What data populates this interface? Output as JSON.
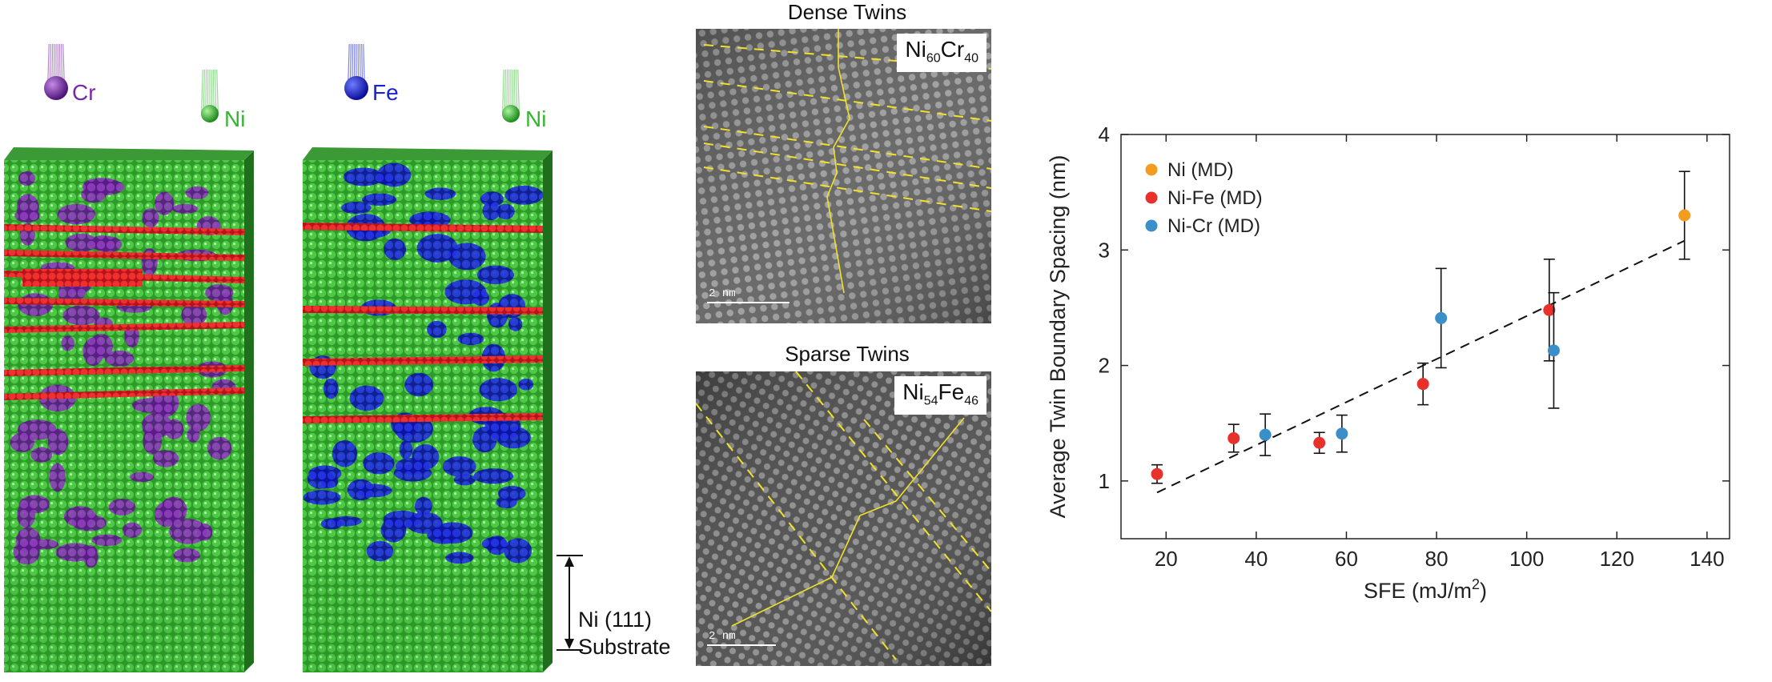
{
  "md_panel": {
    "left_column": {
      "deposit_a": "Cr",
      "deposit_b": "Ni"
    },
    "right_column": {
      "deposit_a": "Fe",
      "deposit_b": "Ni"
    },
    "substrate_line1": "Ni (111)",
    "substrate_line2": "Substrate",
    "colors": {
      "ni": "#3fbf3a",
      "cr": "#7a2aa8",
      "fe": "#1a22d8",
      "twin": "#e8252b"
    }
  },
  "tem_top": {
    "title": "Dense Twins",
    "element1": "Ni",
    "sub1": "60",
    "element2": "Cr",
    "sub2": "40",
    "scale": "2 nm"
  },
  "tem_bottom": {
    "title": "Sparse Twins",
    "element1": "Ni",
    "sub1": "54",
    "element2": "Fe",
    "sub2": "46",
    "scale": "2 nm"
  },
  "chart_data": {
    "type": "scatter",
    "xlabel_main": "SFE (mJ/m",
    "xlabel_sup": "2",
    "xlabel_end": ")",
    "ylabel": "Average Twin Boundary Spacing (nm)",
    "xlim": [
      10,
      145
    ],
    "ylim": [
      0.5,
      4
    ],
    "x_ticks": [
      20,
      40,
      60,
      80,
      100,
      120,
      140
    ],
    "y_ticks": [
      1,
      2,
      3,
      4
    ],
    "legend_position": "top-left",
    "series": [
      {
        "name": "Ni (MD)",
        "color": "#f39c1f",
        "points": [
          {
            "x": 135,
            "y": 3.3,
            "err": 0.38
          }
        ]
      },
      {
        "name": "Ni-Fe (MD)",
        "color": "#e8312a",
        "points": [
          {
            "x": 18,
            "y": 1.06,
            "err": 0.08
          },
          {
            "x": 35,
            "y": 1.37,
            "err": 0.12
          },
          {
            "x": 54,
            "y": 1.33,
            "err": 0.09
          },
          {
            "x": 77,
            "y": 1.84,
            "err": 0.18
          },
          {
            "x": 105,
            "y": 2.48,
            "err": 0.44
          }
        ]
      },
      {
        "name": "Ni-Cr (MD)",
        "color": "#3a8fc8",
        "points": [
          {
            "x": 42,
            "y": 1.4,
            "err": 0.18
          },
          {
            "x": 59,
            "y": 1.41,
            "err": 0.16
          },
          {
            "x": 81,
            "y": 2.41,
            "err": 0.43
          },
          {
            "x": 106,
            "y": 2.13,
            "err": 0.5
          }
        ]
      }
    ],
    "fit_line": {
      "x": [
        18,
        135
      ],
      "y": [
        0.9,
        3.08
      ]
    }
  }
}
